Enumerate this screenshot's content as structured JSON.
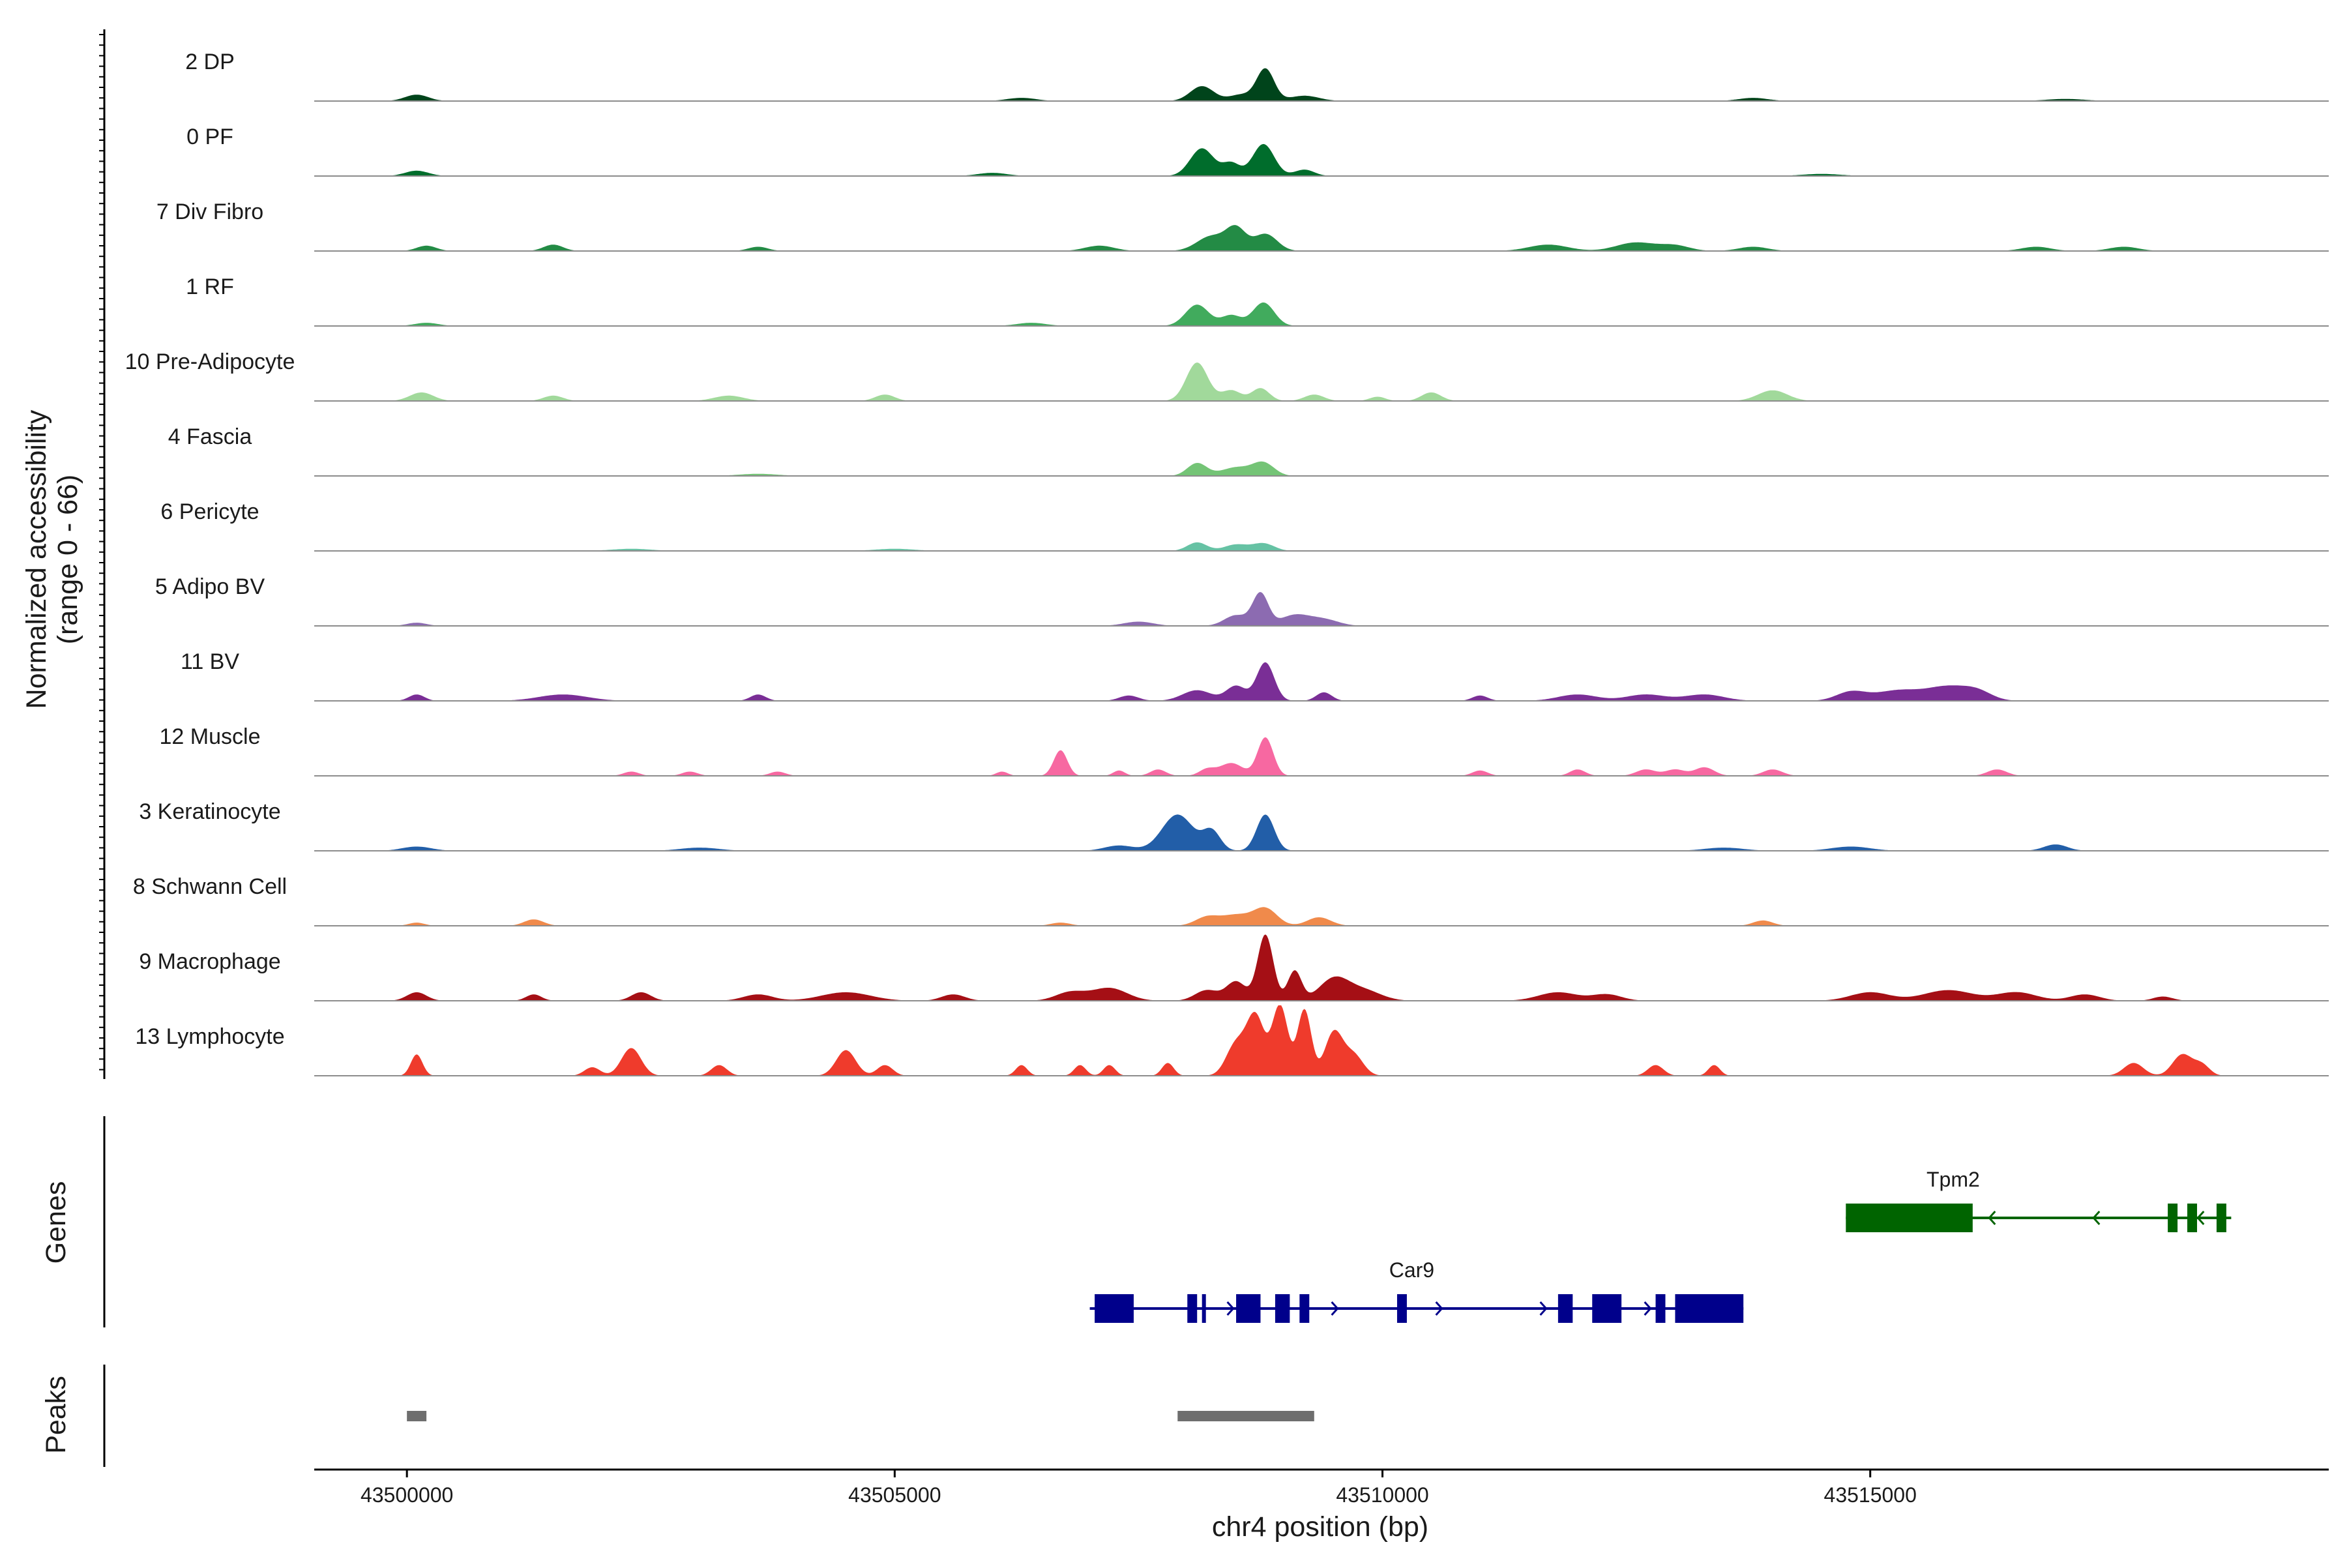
{
  "chart_data": {
    "type": "area",
    "title": "",
    "xlabel": "chr4 position (bp)",
    "ylabel_line1": "Normalized accessibility",
    "ylabel_line2": "(range 0 - 66)",
    "yrange": [
      0,
      66
    ],
    "xlim": [
      43499050,
      43519700
    ],
    "xticks": [
      43500000,
      43505000,
      43510000,
      43515000
    ],
    "xtick_labels": [
      "43500000",
      "43505000",
      "43510000",
      "43515000"
    ],
    "grid": false,
    "tracks": [
      {
        "name": "2 DP",
        "color": "#00441b",
        "peaks": [
          [
            43508150,
            120,
            14
          ],
          [
            43508550,
            120,
            6
          ],
          [
            43508800,
            90,
            30
          ],
          [
            43509200,
            150,
            5
          ],
          [
            43500100,
            120,
            6
          ],
          [
            43506300,
            150,
            3
          ],
          [
            43513800,
            150,
            3
          ],
          [
            43517000,
            200,
            2
          ]
        ]
      },
      {
        "name": "0 PF",
        "color": "#006d2c",
        "peaks": [
          [
            43508150,
            120,
            26
          ],
          [
            43508450,
            90,
            12
          ],
          [
            43508780,
            110,
            30
          ],
          [
            43509200,
            100,
            6
          ],
          [
            43500100,
            120,
            5
          ],
          [
            43506000,
            150,
            3
          ],
          [
            43514500,
            200,
            2
          ]
        ]
      },
      {
        "name": "7 Div Fibro",
        "color": "#238b45",
        "peaks": [
          [
            43508250,
            150,
            14
          ],
          [
            43508500,
            100,
            20
          ],
          [
            43508800,
            120,
            16
          ],
          [
            43501500,
            100,
            6
          ],
          [
            43500200,
            100,
            5
          ],
          [
            43503600,
            100,
            4
          ],
          [
            43507100,
            150,
            5
          ],
          [
            43511700,
            200,
            6
          ],
          [
            43512600,
            200,
            8
          ],
          [
            43513000,
            150,
            5
          ],
          [
            43513800,
            150,
            4
          ],
          [
            43516700,
            150,
            4
          ],
          [
            43517600,
            150,
            4
          ]
        ]
      },
      {
        "name": "1 RF",
        "color": "#41ab5d",
        "peaks": [
          [
            43508100,
            120,
            20
          ],
          [
            43508450,
            100,
            10
          ],
          [
            43508780,
            110,
            22
          ],
          [
            43500200,
            120,
            3
          ],
          [
            43506400,
            150,
            3
          ]
        ]
      },
      {
        "name": "10 Pre-Adipocyte",
        "color": "#a1d99b",
        "peaks": [
          [
            43508100,
            110,
            36
          ],
          [
            43508450,
            100,
            10
          ],
          [
            43508750,
            90,
            12
          ],
          [
            43509300,
            100,
            6
          ],
          [
            43500150,
            120,
            8
          ],
          [
            43501500,
            100,
            5
          ],
          [
            43503300,
            150,
            5
          ],
          [
            43504900,
            100,
            6
          ],
          [
            43510500,
            100,
            8
          ],
          [
            43514000,
            150,
            10
          ],
          [
            43509950,
            80,
            4
          ]
        ]
      },
      {
        "name": "4 Fascia",
        "color": "#74c476",
        "peaks": [
          [
            43508100,
            100,
            12
          ],
          [
            43508500,
            150,
            8
          ],
          [
            43508780,
            110,
            12
          ],
          [
            43503600,
            200,
            2
          ]
        ]
      },
      {
        "name": "6 Pericyte",
        "color": "#66c2a4",
        "peaks": [
          [
            43508100,
            100,
            8
          ],
          [
            43508500,
            120,
            6
          ],
          [
            43508780,
            110,
            7
          ],
          [
            43505000,
            200,
            2
          ],
          [
            43502300,
            200,
            2
          ]
        ]
      },
      {
        "name": "5 Adipo BV",
        "color": "#8c6bb1",
        "peaks": [
          [
            43508500,
            120,
            10
          ],
          [
            43508750,
            80,
            30
          ],
          [
            43509100,
            150,
            10
          ],
          [
            43509400,
            150,
            6
          ],
          [
            43507500,
            150,
            4
          ],
          [
            43500100,
            100,
            3
          ]
        ]
      },
      {
        "name": "11 BV",
        "color": "#7a2e96",
        "peaks": [
          [
            43508800,
            90,
            36
          ],
          [
            43508500,
            100,
            14
          ],
          [
            43508100,
            150,
            10
          ],
          [
            43507400,
            100,
            5
          ],
          [
            43509400,
            80,
            8
          ],
          [
            43500100,
            80,
            6
          ],
          [
            43501600,
            250,
            6
          ],
          [
            43503600,
            80,
            6
          ],
          [
            43511000,
            80,
            5
          ],
          [
            43512000,
            200,
            6
          ],
          [
            43512700,
            200,
            6
          ],
          [
            43513300,
            200,
            6
          ],
          [
            43514800,
            150,
            8
          ],
          [
            43515300,
            250,
            10
          ],
          [
            43515800,
            200,
            12
          ],
          [
            43516100,
            150,
            8
          ]
        ]
      },
      {
        "name": "12 Muscle",
        "color": "#f768a1",
        "peaks": [
          [
            43506700,
            70,
            24
          ],
          [
            43508800,
            80,
            36
          ],
          [
            43508450,
            120,
            12
          ],
          [
            43508200,
            80,
            6
          ],
          [
            43507700,
            80,
            6
          ],
          [
            43507300,
            60,
            5
          ],
          [
            43506100,
            60,
            4
          ],
          [
            43502300,
            80,
            4
          ],
          [
            43502900,
            80,
            4
          ],
          [
            43503800,
            80,
            4
          ],
          [
            43511000,
            80,
            5
          ],
          [
            43512000,
            80,
            6
          ],
          [
            43512700,
            100,
            6
          ],
          [
            43513000,
            100,
            6
          ],
          [
            43513300,
            100,
            8
          ],
          [
            43514000,
            100,
            6
          ],
          [
            43516300,
            100,
            6
          ]
        ]
      },
      {
        "name": "3 Keratinocyte",
        "color": "#225ea8",
        "peaks": [
          [
            43507900,
            160,
            34
          ],
          [
            43508250,
            90,
            18
          ],
          [
            43508800,
            90,
            34
          ],
          [
            43507300,
            150,
            5
          ],
          [
            43500100,
            150,
            4
          ],
          [
            43503000,
            200,
            3
          ],
          [
            43513500,
            200,
            3
          ],
          [
            43514800,
            200,
            4
          ],
          [
            43516900,
            120,
            6
          ]
        ]
      },
      {
        "name": "8 Schwann Cell",
        "color": "#f08a4b",
        "peaks": [
          [
            43508200,
            120,
            8
          ],
          [
            43508500,
            150,
            10
          ],
          [
            43508800,
            120,
            16
          ],
          [
            43509350,
            120,
            8
          ],
          [
            43501300,
            100,
            6
          ],
          [
            43500100,
            80,
            3
          ],
          [
            43513900,
            100,
            5
          ],
          [
            43506700,
            100,
            3
          ]
        ]
      },
      {
        "name": "9 Macrophage",
        "color": "#a50f15",
        "peaks": [
          [
            43508800,
            80,
            62
          ],
          [
            43509100,
            70,
            28
          ],
          [
            43508500,
            100,
            18
          ],
          [
            43508200,
            120,
            10
          ],
          [
            43507200,
            180,
            12
          ],
          [
            43506800,
            150,
            8
          ],
          [
            43509500,
            150,
            20
          ],
          [
            43509800,
            180,
            10
          ],
          [
            43500100,
            100,
            8
          ],
          [
            43501300,
            80,
            6
          ],
          [
            43502400,
            100,
            8
          ],
          [
            43503600,
            150,
            6
          ],
          [
            43504500,
            250,
            8
          ],
          [
            43505600,
            120,
            6
          ],
          [
            43511800,
            200,
            8
          ],
          [
            43512300,
            150,
            6
          ],
          [
            43515000,
            200,
            8
          ],
          [
            43515800,
            250,
            10
          ],
          [
            43516500,
            200,
            8
          ],
          [
            43517200,
            150,
            6
          ],
          [
            43518000,
            100,
            4
          ]
        ]
      },
      {
        "name": "13 Lymphocyte",
        "color": "#ef3b2c",
        "peaks": [
          [
            43508950,
            80,
            66
          ],
          [
            43509200,
            70,
            62
          ],
          [
            43508700,
            90,
            55
          ],
          [
            43508500,
            100,
            30
          ],
          [
            43509500,
            90,
            40
          ],
          [
            43509700,
            100,
            20
          ],
          [
            43500100,
            60,
            20
          ],
          [
            43502300,
            100,
            26
          ],
          [
            43504500,
            100,
            24
          ],
          [
            43504900,
            80,
            10
          ],
          [
            43501900,
            80,
            8
          ],
          [
            43503200,
            80,
            10
          ],
          [
            43506300,
            60,
            10
          ],
          [
            43506900,
            60,
            10
          ],
          [
            43507200,
            60,
            10
          ],
          [
            43507800,
            60,
            12
          ],
          [
            43512800,
            80,
            10
          ],
          [
            43513400,
            60,
            10
          ],
          [
            43517700,
            100,
            12
          ],
          [
            43518200,
            100,
            20
          ],
          [
            43518400,
            80,
            10
          ]
        ]
      }
    ],
    "genes": [
      {
        "name": "Tpm2",
        "strand": "-",
        "color": "#006400",
        "start": 43514750,
        "end": 43518700,
        "exons": [
          [
            43514750,
            43516050
          ],
          [
            43518050,
            43518150
          ],
          [
            43518250,
            43518350
          ],
          [
            43518550,
            43518650
          ]
        ]
      },
      {
        "name": "Car9",
        "strand": "+",
        "color": "#00008b",
        "start": 43507000,
        "end": 43513700,
        "exons": [
          [
            43507050,
            43507450
          ],
          [
            43508000,
            43508100
          ],
          [
            43508150,
            43508180
          ],
          [
            43508500,
            43508750
          ],
          [
            43508900,
            43509050
          ],
          [
            43509150,
            43509250
          ],
          [
            43510150,
            43510250
          ],
          [
            43511800,
            43511950
          ],
          [
            43512150,
            43512450
          ],
          [
            43512800,
            43512900
          ],
          [
            43513000,
            43513700
          ]
        ]
      }
    ],
    "peaks_track": [
      [
        43500000,
        43500200
      ],
      [
        43507900,
        43509300
      ]
    ],
    "panel_labels": {
      "genes": "Genes",
      "peaks": "Peaks"
    }
  }
}
